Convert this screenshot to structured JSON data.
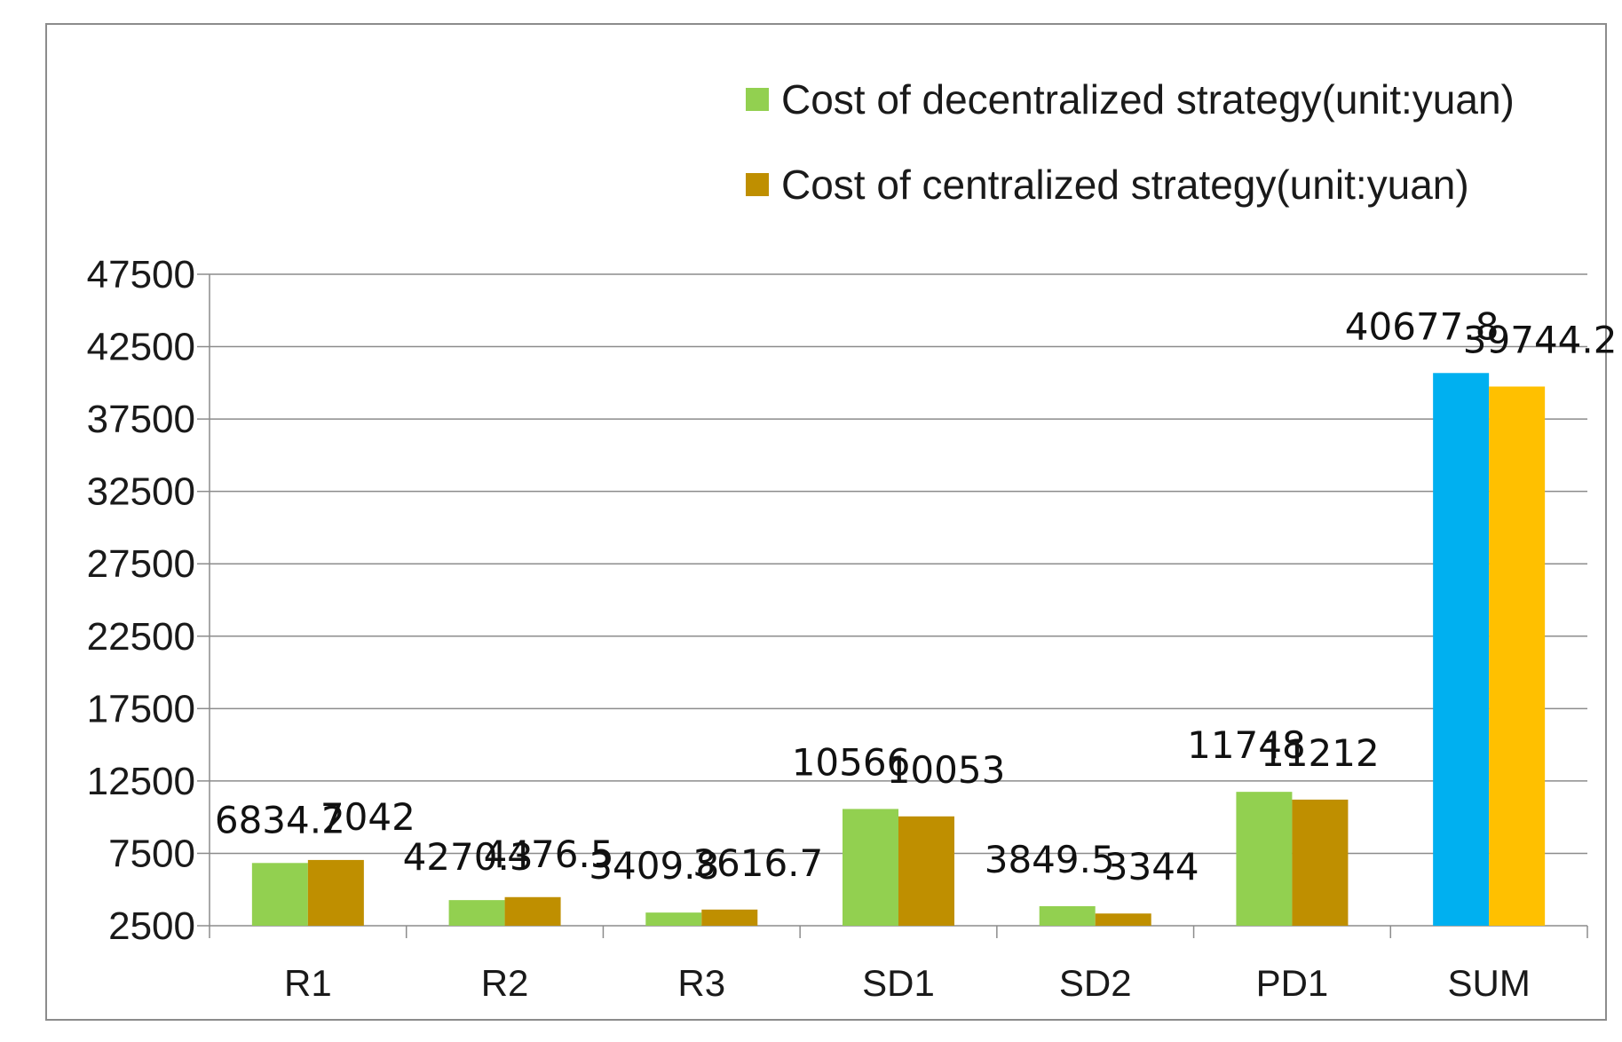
{
  "chart_data": {
    "type": "bar",
    "title": "",
    "xlabel": "",
    "ylabel": "",
    "categories": [
      "R1",
      "R2",
      "R3",
      "SD1",
      "SD2",
      "PD1",
      "SUM"
    ],
    "series": [
      {
        "name": "Cost of decentralized strategy(unit:yuan)",
        "color": "#92d050",
        "values": [
          6834.2,
          4270.3,
          3409.8,
          10566,
          3849.5,
          11748,
          40677.8
        ],
        "labels": [
          "6834.2",
          "4270.3",
          "3409.8",
          "10566",
          "3849.5",
          "11748",
          "40677.8"
        ]
      },
      {
        "name": "Cost of centralized strategy(unit:yuan)",
        "color": "#bf8f00",
        "values": [
          7042,
          4476.5,
          3616.7,
          10053,
          3344,
          11212,
          39744.2
        ],
        "labels": [
          "7042",
          "4476.5",
          "3616.7",
          "10053",
          "3344",
          "11212",
          "39744.2"
        ]
      }
    ],
    "highlight_category": {
      "name": "SUM",
      "colors": [
        "#00b0f0",
        "#ffc000"
      ]
    },
    "yticks": [
      "2500",
      "7500",
      "12500",
      "17500",
      "22500",
      "27500",
      "32500",
      "37500",
      "42500",
      "47500"
    ],
    "ylim": [
      2500,
      47500
    ],
    "grid": true,
    "legend_position": "top-right"
  }
}
